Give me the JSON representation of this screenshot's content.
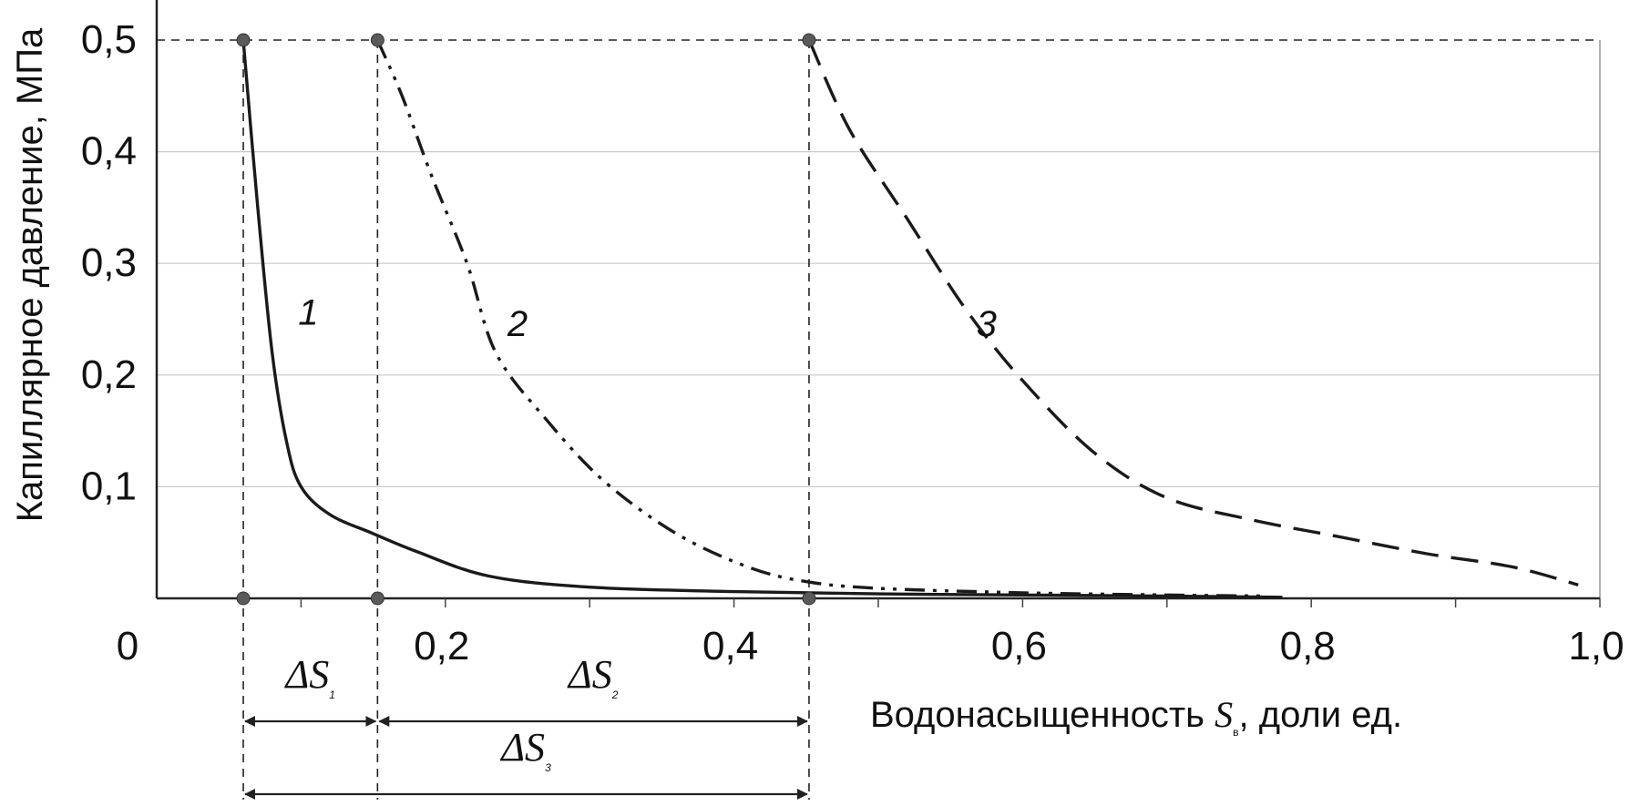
{
  "chart_data": {
    "type": "line",
    "title": "",
    "ylabel": "Капиллярное давление, МПа",
    "xlabel": {
      "prefix": "Водонасыщенность ",
      "symbol": "S",
      "subscript": "в",
      "suffix": ", доли ед."
    },
    "xlim": [
      0,
      1.0
    ],
    "ylim": [
      0,
      0.5
    ],
    "x_ticks": [
      {
        "value": 0,
        "label": "0"
      },
      {
        "value": 0.2,
        "label": "0,2"
      },
      {
        "value": 0.4,
        "label": "0,4"
      },
      {
        "value": 0.6,
        "label": "0,6"
      },
      {
        "value": 0.8,
        "label": "0,8"
      },
      {
        "value": 1.0,
        "label": "1,0"
      }
    ],
    "y_ticks": [
      {
        "value": 0.1,
        "label": "0,1"
      },
      {
        "value": 0.2,
        "label": "0,2"
      },
      {
        "value": 0.3,
        "label": "0,3"
      },
      {
        "value": 0.4,
        "label": "0,4"
      },
      {
        "value": 0.5,
        "label": "0,5"
      }
    ],
    "grid": "horizontal",
    "series": [
      {
        "label": "1",
        "style": "solid",
        "points": [
          [
            0.06,
            0.5
          ],
          [
            0.07,
            0.35
          ],
          [
            0.08,
            0.22
          ],
          [
            0.09,
            0.14
          ],
          [
            0.1,
            0.1
          ],
          [
            0.12,
            0.075
          ],
          [
            0.15,
            0.058
          ],
          [
            0.18,
            0.042
          ],
          [
            0.23,
            0.02
          ],
          [
            0.3,
            0.01
          ],
          [
            0.4,
            0.006
          ],
          [
            0.5,
            0.004
          ],
          [
            0.6,
            0.003
          ],
          [
            0.7,
            0.002
          ],
          [
            0.78,
            0.001
          ]
        ],
        "label_at": [
          0.105,
          0.245
        ]
      },
      {
        "label": "2",
        "style": "dash-dot-dot",
        "points": [
          [
            0.153,
            0.5
          ],
          [
            0.17,
            0.45
          ],
          [
            0.19,
            0.38
          ],
          [
            0.215,
            0.3
          ],
          [
            0.235,
            0.22
          ],
          [
            0.27,
            0.16
          ],
          [
            0.31,
            0.105
          ],
          [
            0.36,
            0.058
          ],
          [
            0.41,
            0.028
          ],
          [
            0.45,
            0.015
          ],
          [
            0.5,
            0.009
          ],
          [
            0.6,
            0.005
          ],
          [
            0.7,
            0.003
          ],
          [
            0.77,
            0.002
          ]
        ],
        "label_at": [
          0.25,
          0.235
        ]
      },
      {
        "label": "3",
        "style": "dashed",
        "points": [
          [
            0.452,
            0.5
          ],
          [
            0.48,
            0.42
          ],
          [
            0.52,
            0.34
          ],
          [
            0.56,
            0.26
          ],
          [
            0.6,
            0.195
          ],
          [
            0.65,
            0.13
          ],
          [
            0.7,
            0.09
          ],
          [
            0.76,
            0.07
          ],
          [
            0.82,
            0.055
          ],
          [
            0.88,
            0.04
          ],
          [
            0.94,
            0.028
          ],
          [
            0.985,
            0.012
          ]
        ],
        "label_at": [
          0.575,
          0.235
        ]
      }
    ],
    "markers": [
      [
        0.06,
        0.5
      ],
      [
        0.153,
        0.5
      ],
      [
        0.452,
        0.5
      ],
      [
        0.06,
        0
      ],
      [
        0.153,
        0
      ],
      [
        0.452,
        0
      ]
    ],
    "reference_lines": {
      "horizontal_y": 0.5,
      "vertical_x": [
        0.06,
        0.153,
        0.452
      ]
    },
    "intervals": [
      {
        "symbol": "ΔS",
        "subscript": "1",
        "from": 0.06,
        "to": 0.153
      },
      {
        "symbol": "ΔS",
        "subscript": "2",
        "from": 0.153,
        "to": 0.452
      },
      {
        "symbol": "ΔS",
        "subscript": "3",
        "from": 0.06,
        "to": 0.452
      }
    ]
  }
}
